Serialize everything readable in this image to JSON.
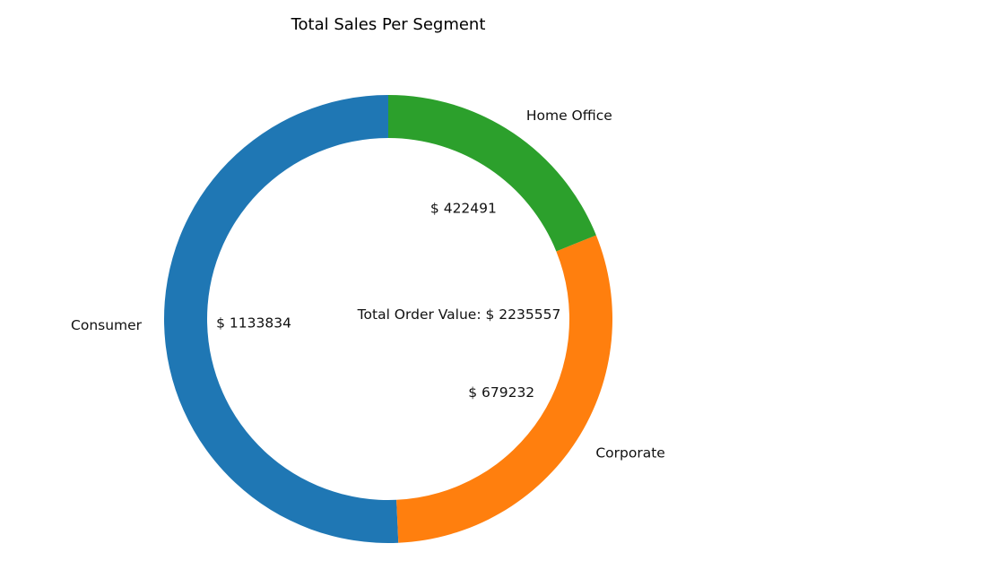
{
  "chart_data": {
    "type": "pie",
    "style": "donut",
    "title": "Total Sales Per Segment",
    "center_label": "Total Order Value:  $ 2235557",
    "slices": [
      {
        "label": "Consumer",
        "value": 1133834,
        "value_label": "$ 1133834",
        "color": "#1f77b4"
      },
      {
        "label": "Corporate",
        "value": 679232,
        "value_label": "$ 679232",
        "color": "#ff7f0e"
      },
      {
        "label": "Home Office",
        "value": 422491,
        "value_label": "$ 422491",
        "color": "#2ca02c"
      }
    ],
    "start_angle": "top",
    "direction": "counterclockwise",
    "legend": "none"
  }
}
